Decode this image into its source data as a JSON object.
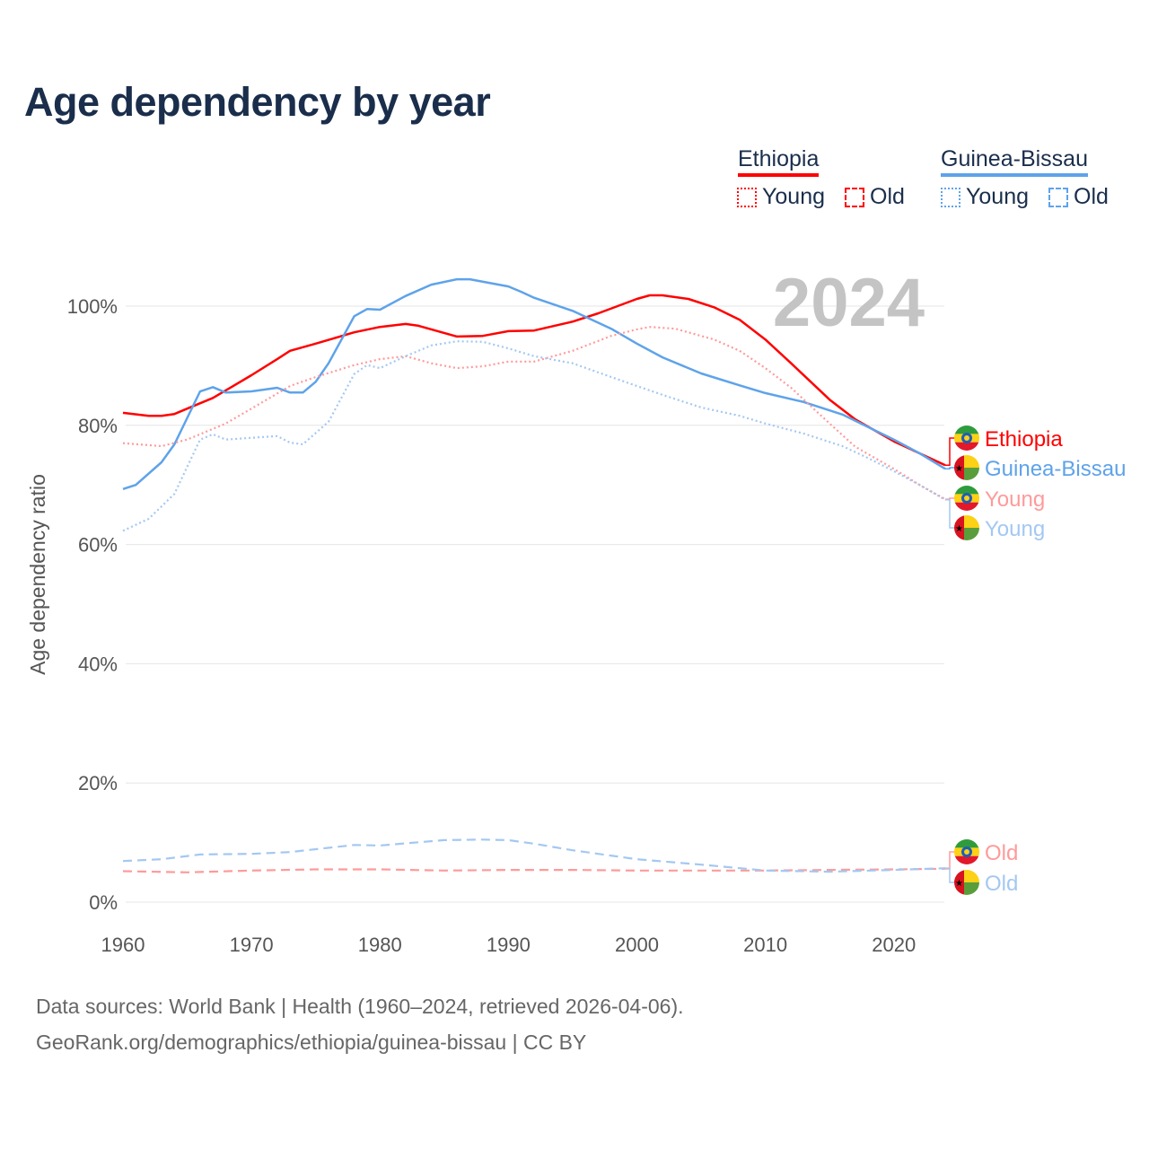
{
  "title": "Age dependency by year",
  "legend": {
    "countries": [
      {
        "name": "Ethiopia",
        "color": "#ff0000",
        "young": "Young",
        "old": "Old"
      },
      {
        "name": "Guinea-Bissau",
        "color": "#5ea3ea",
        "young": "Young",
        "old": "Old"
      }
    ]
  },
  "footer": {
    "line1": "Data sources: World Bank | Health (1960–2024, retrieved 2026-04-06).",
    "line2": "GeoRank.org/demographics/ethiopia/guinea-bissau | CC BY"
  },
  "chart_data": {
    "type": "line",
    "title": "Age dependency by year",
    "year_label": "2024",
    "xlabel": "",
    "ylabel": "Age dependency ratio",
    "xlim": [
      1960,
      2024
    ],
    "ylim": [
      0,
      100
    ],
    "x_ticks": [
      "1960",
      "1970",
      "1980",
      "1990",
      "2000",
      "2010",
      "2020"
    ],
    "y_ticks": [
      "0%",
      "20%",
      "40%",
      "60%",
      "80%",
      "100%"
    ],
    "grid": true,
    "series": [
      {
        "name": "Ethiopia",
        "label": "Ethiopia",
        "country": "Ethiopia",
        "kind": "total",
        "color": "#ff0000",
        "style": "solid",
        "points": [
          [
            1960,
            82.1
          ],
          [
            1962,
            81.6
          ],
          [
            1963,
            81.6
          ],
          [
            1964,
            81.9
          ],
          [
            1965,
            82.8
          ],
          [
            1967,
            84.6
          ],
          [
            1970,
            88.4
          ],
          [
            1972,
            91.1
          ],
          [
            1973,
            92.5
          ],
          [
            1975,
            93.7
          ],
          [
            1978,
            95.6
          ],
          [
            1980,
            96.5
          ],
          [
            1982,
            97.0
          ],
          [
            1983,
            96.7
          ],
          [
            1985,
            95.5
          ],
          [
            1986,
            94.9
          ],
          [
            1988,
            95.0
          ],
          [
            1990,
            95.8
          ],
          [
            1992,
            95.9
          ],
          [
            1995,
            97.4
          ],
          [
            1997,
            98.8
          ],
          [
            2000,
            101.2
          ],
          [
            2001,
            101.8
          ],
          [
            2002,
            101.8
          ],
          [
            2004,
            101.2
          ],
          [
            2006,
            99.8
          ],
          [
            2008,
            97.7
          ],
          [
            2010,
            94.4
          ],
          [
            2012,
            90.4
          ],
          [
            2015,
            84.3
          ],
          [
            2017,
            81.0
          ],
          [
            2020,
            77.3
          ],
          [
            2022,
            75.3
          ],
          [
            2024,
            73.3
          ]
        ]
      },
      {
        "name": "Guinea-Bissau",
        "label": "Guinea-Bissau",
        "country": "Guinea-Bissau",
        "kind": "total",
        "color": "#5ea3ea",
        "style": "solid",
        "points": [
          [
            1960,
            69.3
          ],
          [
            1961,
            70.0
          ],
          [
            1963,
            73.8
          ],
          [
            1964,
            76.8
          ],
          [
            1966,
            85.7
          ],
          [
            1967,
            86.4
          ],
          [
            1968,
            85.5
          ],
          [
            1970,
            85.7
          ],
          [
            1972,
            86.3
          ],
          [
            1973,
            85.5
          ],
          [
            1974,
            85.5
          ],
          [
            1975,
            87.3
          ],
          [
            1976,
            90.4
          ],
          [
            1978,
            98.3
          ],
          [
            1979,
            99.5
          ],
          [
            1980,
            99.4
          ],
          [
            1982,
            101.7
          ],
          [
            1984,
            103.6
          ],
          [
            1986,
            104.5
          ],
          [
            1987,
            104.5
          ],
          [
            1990,
            103.3
          ],
          [
            1991,
            102.4
          ],
          [
            1992,
            101.4
          ],
          [
            1995,
            99.2
          ],
          [
            1998,
            96.2
          ],
          [
            2000,
            93.7
          ],
          [
            2002,
            91.4
          ],
          [
            2005,
            88.7
          ],
          [
            2008,
            86.7
          ],
          [
            2010,
            85.4
          ],
          [
            2013,
            83.9
          ],
          [
            2016,
            81.8
          ],
          [
            2018,
            79.7
          ],
          [
            2020,
            77.6
          ],
          [
            2022,
            75.3
          ],
          [
            2024,
            72.7
          ]
        ]
      },
      {
        "name": "Ethiopia Young",
        "label": "Young",
        "country": "Ethiopia",
        "kind": "young",
        "color": "#ff9a9a",
        "style": "dotted",
        "points": [
          [
            1960,
            77.0
          ],
          [
            1963,
            76.5
          ],
          [
            1965,
            77.6
          ],
          [
            1968,
            80.3
          ],
          [
            1970,
            82.8
          ],
          [
            1973,
            86.6
          ],
          [
            1975,
            88.1
          ],
          [
            1978,
            90.1
          ],
          [
            1980,
            91.1
          ],
          [
            1982,
            91.6
          ],
          [
            1984,
            90.4
          ],
          [
            1986,
            89.6
          ],
          [
            1988,
            89.9
          ],
          [
            1990,
            90.7
          ],
          [
            1992,
            90.7
          ],
          [
            1995,
            92.5
          ],
          [
            1998,
            95.0
          ],
          [
            2000,
            96.1
          ],
          [
            2001,
            96.5
          ],
          [
            2003,
            96.2
          ],
          [
            2006,
            94.4
          ],
          [
            2008,
            92.5
          ],
          [
            2010,
            89.6
          ],
          [
            2012,
            86.3
          ],
          [
            2015,
            80.3
          ],
          [
            2017,
            76.4
          ],
          [
            2020,
            72.7
          ],
          [
            2022,
            70.0
          ],
          [
            2024,
            67.6
          ]
        ]
      },
      {
        "name": "Guinea-Bissau Young",
        "label": "Young",
        "country": "Guinea-Bissau",
        "kind": "young",
        "color": "#a3c8f2",
        "style": "dotted",
        "points": [
          [
            1960,
            62.3
          ],
          [
            1962,
            64.3
          ],
          [
            1964,
            68.5
          ],
          [
            1966,
            77.6
          ],
          [
            1967,
            78.5
          ],
          [
            1968,
            77.6
          ],
          [
            1972,
            78.2
          ],
          [
            1973,
            77.1
          ],
          [
            1974,
            76.8
          ],
          [
            1976,
            80.6
          ],
          [
            1978,
            88.6
          ],
          [
            1979,
            90.1
          ],
          [
            1980,
            89.6
          ],
          [
            1982,
            91.6
          ],
          [
            1984,
            93.4
          ],
          [
            1986,
            94.1
          ],
          [
            1988,
            94.0
          ],
          [
            1990,
            92.9
          ],
          [
            1992,
            91.6
          ],
          [
            1995,
            90.4
          ],
          [
            1998,
            88.1
          ],
          [
            2000,
            86.6
          ],
          [
            2002,
            85.1
          ],
          [
            2005,
            83.0
          ],
          [
            2008,
            81.6
          ],
          [
            2010,
            80.3
          ],
          [
            2013,
            78.6
          ],
          [
            2016,
            76.5
          ],
          [
            2018,
            74.5
          ],
          [
            2020,
            72.3
          ],
          [
            2022,
            70.0
          ],
          [
            2024,
            67.5
          ]
        ]
      },
      {
        "name": "Ethiopia Old",
        "label": "Old",
        "country": "Ethiopia",
        "kind": "old",
        "color": "#ff9a9a",
        "style": "dashed",
        "points": [
          [
            1960,
            5.2
          ],
          [
            1965,
            5.0
          ],
          [
            1970,
            5.3
          ],
          [
            1975,
            5.5
          ],
          [
            1980,
            5.5
          ],
          [
            1985,
            5.3
          ],
          [
            1990,
            5.4
          ],
          [
            1995,
            5.4
          ],
          [
            2000,
            5.3
          ],
          [
            2005,
            5.3
          ],
          [
            2010,
            5.3
          ],
          [
            2015,
            5.4
          ],
          [
            2020,
            5.5
          ],
          [
            2024,
            5.6
          ]
        ]
      },
      {
        "name": "Guinea-Bissau Old",
        "label": "Old",
        "country": "Guinea-Bissau",
        "kind": "old",
        "color": "#a3c8f2",
        "style": "dashed",
        "points": [
          [
            1960,
            6.9
          ],
          [
            1963,
            7.2
          ],
          [
            1966,
            8.0
          ],
          [
            1970,
            8.1
          ],
          [
            1973,
            8.4
          ],
          [
            1978,
            9.6
          ],
          [
            1980,
            9.5
          ],
          [
            1985,
            10.4
          ],
          [
            1988,
            10.5
          ],
          [
            1990,
            10.4
          ],
          [
            1992,
            9.8
          ],
          [
            1995,
            8.7
          ],
          [
            2000,
            7.2
          ],
          [
            2005,
            6.3
          ],
          [
            2010,
            5.3
          ],
          [
            2015,
            5.1
          ],
          [
            2020,
            5.4
          ],
          [
            2024,
            5.7
          ]
        ]
      }
    ]
  }
}
